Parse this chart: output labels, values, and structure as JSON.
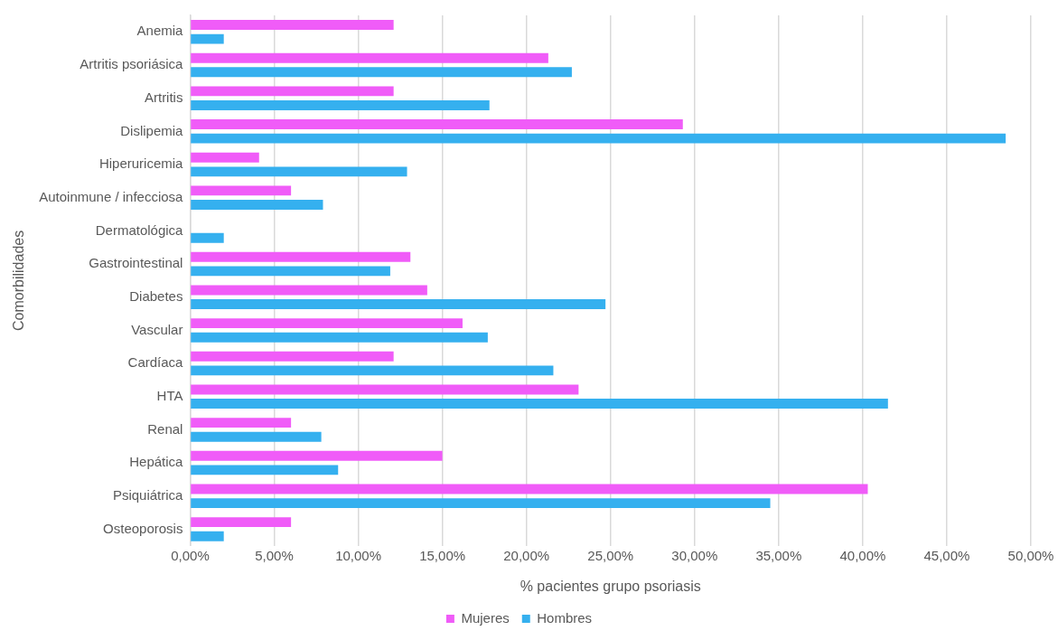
{
  "chart_data": {
    "type": "bar",
    "orientation": "horizontal",
    "categories": [
      "Anemia",
      "Artritis psoriásica",
      "Artritis",
      "Dislipemia",
      "Hiperuricemia",
      "Autoinmune / infecciosa",
      "Dermatológica",
      "Gastrointestinal",
      "Diabetes",
      "Vascular",
      "Cardíaca",
      "HTA",
      "Renal",
      "Hepática",
      "Psiquiátrica",
      "Osteoporosis"
    ],
    "series": [
      {
        "name": "Mujeres",
        "color": "#f05cf8",
        "values": [
          12.1,
          21.3,
          12.1,
          29.3,
          4.1,
          6.0,
          0,
          13.1,
          14.1,
          16.2,
          12.1,
          23.1,
          6.0,
          15.0,
          40.3,
          6.0
        ]
      },
      {
        "name": "Hombres",
        "color": "#35b0ef",
        "values": [
          2.0,
          22.7,
          17.8,
          48.5,
          12.9,
          7.9,
          2.0,
          11.9,
          24.7,
          17.7,
          21.6,
          41.5,
          7.8,
          8.8,
          34.5,
          2.0
        ]
      }
    ],
    "xlabel": "% pacientes grupo psoriasis",
    "ylabel": "Comorbilidades",
    "xlim": [
      0,
      50
    ],
    "xticks": [
      {
        "value": 0,
        "label": "0,00%"
      },
      {
        "value": 5,
        "label": "5,00%"
      },
      {
        "value": 10,
        "label": "10,00%"
      },
      {
        "value": 15,
        "label": "15,00%"
      },
      {
        "value": 20,
        "label": "20,00%"
      },
      {
        "value": 25,
        "label": "25,00%"
      },
      {
        "value": 30,
        "label": "30,00%"
      },
      {
        "value": 35,
        "label": "35,00%"
      },
      {
        "value": 40,
        "label": "40,00%"
      },
      {
        "value": 45,
        "label": "45,00%"
      },
      {
        "value": 50,
        "label": "50,00%"
      }
    ],
    "grid": "x",
    "legend": "bottom"
  }
}
